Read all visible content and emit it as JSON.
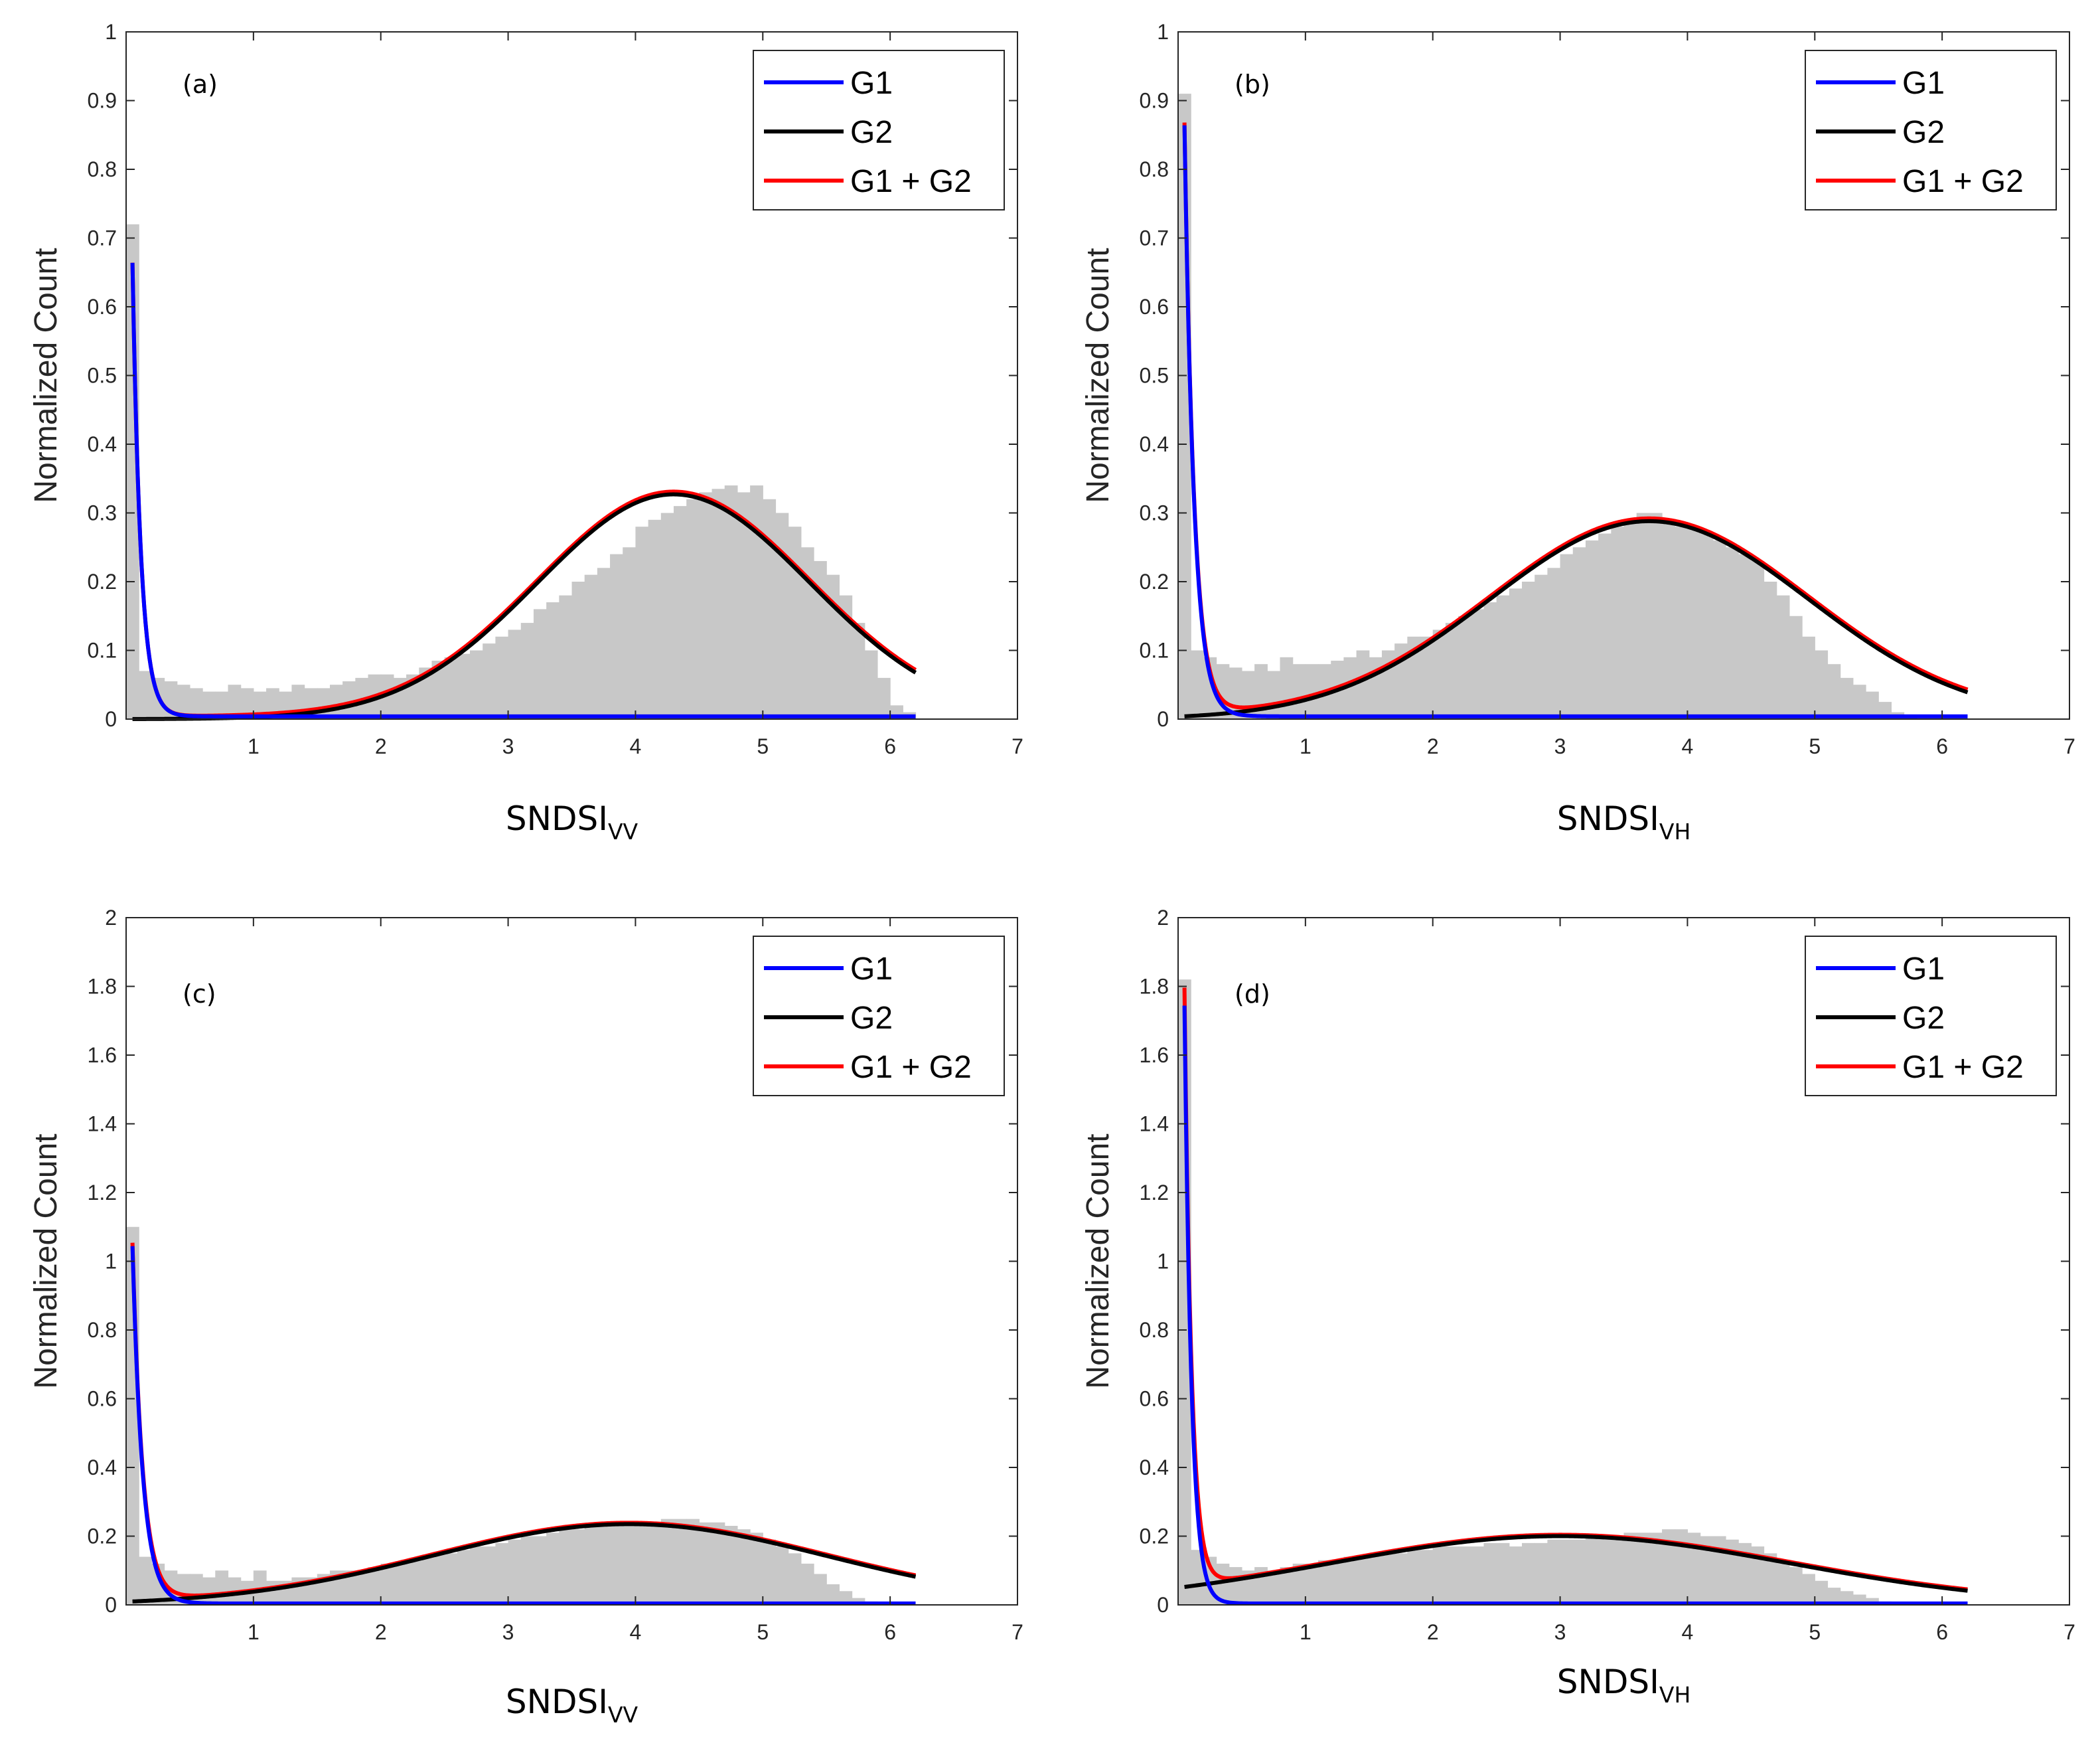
{
  "figure": {
    "legend_labels": [
      "G1",
      "G2",
      "G1 + G2"
    ],
    "ylabel": "Normalized Count",
    "colors": {
      "g1": "#0000ff",
      "g2": "#000000",
      "sum": "#ff0000",
      "hist": "#c8c8c8",
      "axis": "#262626"
    }
  },
  "chart_data": [
    {
      "type": "histogram_with_fits",
      "panel": "(a)",
      "xlabel_main": "SNDSI",
      "xlabel_sub": "VV",
      "ylabel": "Normalized Count",
      "xlim": [
        0,
        7
      ],
      "ylim": [
        0,
        1
      ],
      "xticks": [
        1,
        2,
        3,
        4,
        5,
        6,
        7
      ],
      "yticks": [
        0,
        0.1,
        0.2,
        0.3,
        0.4,
        0.5,
        0.6,
        0.7,
        0.8,
        0.9,
        1
      ],
      "legend": [
        "G1",
        "G2",
        "G1 + G2"
      ],
      "hist_bin_width": 0.1,
      "hist_values": [
        0.72,
        0.07,
        0.06,
        0.055,
        0.05,
        0.045,
        0.04,
        0.04,
        0.05,
        0.045,
        0.04,
        0.045,
        0.04,
        0.05,
        0.045,
        0.045,
        0.05,
        0.055,
        0.06,
        0.065,
        0.065,
        0.06,
        0.065,
        0.075,
        0.085,
        0.09,
        0.095,
        0.1,
        0.11,
        0.12,
        0.13,
        0.14,
        0.16,
        0.17,
        0.18,
        0.2,
        0.21,
        0.22,
        0.24,
        0.25,
        0.28,
        0.29,
        0.3,
        0.31,
        0.32,
        0.33,
        0.335,
        0.34,
        0.33,
        0.34,
        0.32,
        0.3,
        0.28,
        0.25,
        0.23,
        0.21,
        0.18,
        0.14,
        0.1,
        0.06,
        0.02,
        0.01
      ],
      "g1": {
        "amp": 0.66,
        "decay": 0.065,
        "x0": 0.05
      },
      "g2": {
        "amp": 0.327,
        "mu": 4.3,
        "sigma": 1.07
      },
      "curve_range": [
        0.05,
        6.2
      ]
    },
    {
      "type": "histogram_with_fits",
      "panel": "(b)",
      "xlabel_main": "SNDSI",
      "xlabel_sub": "VH",
      "ylabel": "Normalized Count",
      "xlim": [
        0,
        7
      ],
      "ylim": [
        0,
        1
      ],
      "xticks": [
        1,
        2,
        3,
        4,
        5,
        6,
        7
      ],
      "yticks": [
        0,
        0.1,
        0.2,
        0.3,
        0.4,
        0.5,
        0.6,
        0.7,
        0.8,
        0.9,
        1
      ],
      "legend": [
        "G1",
        "G2",
        "G1 + G2"
      ],
      "hist_bin_width": 0.1,
      "hist_values": [
        0.91,
        0.1,
        0.09,
        0.08,
        0.075,
        0.07,
        0.08,
        0.07,
        0.09,
        0.08,
        0.08,
        0.08,
        0.085,
        0.09,
        0.1,
        0.09,
        0.1,
        0.11,
        0.12,
        0.12,
        0.13,
        0.14,
        0.15,
        0.16,
        0.17,
        0.18,
        0.19,
        0.2,
        0.21,
        0.22,
        0.24,
        0.25,
        0.26,
        0.27,
        0.28,
        0.29,
        0.3,
        0.3,
        0.29,
        0.28,
        0.28,
        0.27,
        0.26,
        0.25,
        0.24,
        0.23,
        0.2,
        0.18,
        0.15,
        0.12,
        0.1,
        0.08,
        0.06,
        0.05,
        0.04,
        0.025,
        0.01,
        0.005
      ],
      "g1": {
        "amp": 0.86,
        "decay": 0.075,
        "x0": 0.05
      },
      "g2": {
        "amp": 0.288,
        "mu": 3.7,
        "sigma": 1.25
      },
      "curve_range": [
        0.05,
        6.2
      ]
    },
    {
      "type": "histogram_with_fits",
      "panel": "(c)",
      "xlabel_main": "SNDSI",
      "xlabel_sub": "VV",
      "ylabel": "Normalized Count",
      "xlim": [
        0,
        7
      ],
      "ylim": [
        0,
        2
      ],
      "xticks": [
        1,
        2,
        3,
        4,
        5,
        6,
        7
      ],
      "yticks": [
        0,
        0.2,
        0.4,
        0.6,
        0.8,
        1,
        1.2,
        1.4,
        1.6,
        1.8,
        2
      ],
      "legend": [
        "G1",
        "G2",
        "G1 + G2"
      ],
      "hist_bin_width": 0.1,
      "hist_values": [
        1.1,
        0.14,
        0.12,
        0.1,
        0.09,
        0.09,
        0.08,
        0.1,
        0.08,
        0.07,
        0.1,
        0.07,
        0.07,
        0.08,
        0.08,
        0.09,
        0.1,
        0.1,
        0.1,
        0.11,
        0.12,
        0.12,
        0.13,
        0.14,
        0.15,
        0.15,
        0.16,
        0.17,
        0.17,
        0.18,
        0.19,
        0.2,
        0.2,
        0.21,
        0.22,
        0.22,
        0.23,
        0.23,
        0.24,
        0.24,
        0.24,
        0.24,
        0.25,
        0.25,
        0.25,
        0.24,
        0.24,
        0.23,
        0.22,
        0.21,
        0.19,
        0.17,
        0.15,
        0.12,
        0.09,
        0.06,
        0.04,
        0.02,
        0.01
      ],
      "g1": {
        "amp": 1.04,
        "decay": 0.08,
        "x0": 0.05
      },
      "g2": {
        "amp": 0.235,
        "mu": 3.95,
        "sigma": 1.55
      },
      "curve_range": [
        0.05,
        6.2
      ]
    },
    {
      "type": "histogram_with_fits",
      "panel": "(d)",
      "xlabel_main": "SNDSI",
      "xlabel_sub": "VH",
      "ylabel": "Normalized Count",
      "xlim": [
        0,
        7
      ],
      "ylim": [
        0,
        2
      ],
      "xticks": [
        1,
        2,
        3,
        4,
        5,
        6,
        7
      ],
      "yticks": [
        0,
        0.2,
        0.4,
        0.6,
        0.8,
        1,
        1.2,
        1.4,
        1.6,
        1.8,
        2
      ],
      "legend": [
        "G1",
        "G2",
        "G1 + G2"
      ],
      "hist_bin_width": 0.1,
      "hist_values": [
        1.82,
        0.16,
        0.14,
        0.12,
        0.11,
        0.1,
        0.11,
        0.1,
        0.11,
        0.12,
        0.12,
        0.13,
        0.13,
        0.14,
        0.14,
        0.15,
        0.15,
        0.15,
        0.16,
        0.16,
        0.17,
        0.17,
        0.17,
        0.17,
        0.18,
        0.18,
        0.17,
        0.18,
        0.18,
        0.19,
        0.19,
        0.19,
        0.2,
        0.2,
        0.2,
        0.21,
        0.21,
        0.21,
        0.22,
        0.22,
        0.21,
        0.2,
        0.2,
        0.19,
        0.18,
        0.17,
        0.15,
        0.13,
        0.11,
        0.09,
        0.07,
        0.05,
        0.04,
        0.03,
        0.02,
        0.01
      ],
      "g1": {
        "amp": 1.74,
        "decay": 0.055,
        "x0": 0.05
      },
      "g2": {
        "amp": 0.2,
        "mu": 3.0,
        "sigma": 1.8
      },
      "curve_range": [
        0.05,
        6.2
      ]
    }
  ]
}
